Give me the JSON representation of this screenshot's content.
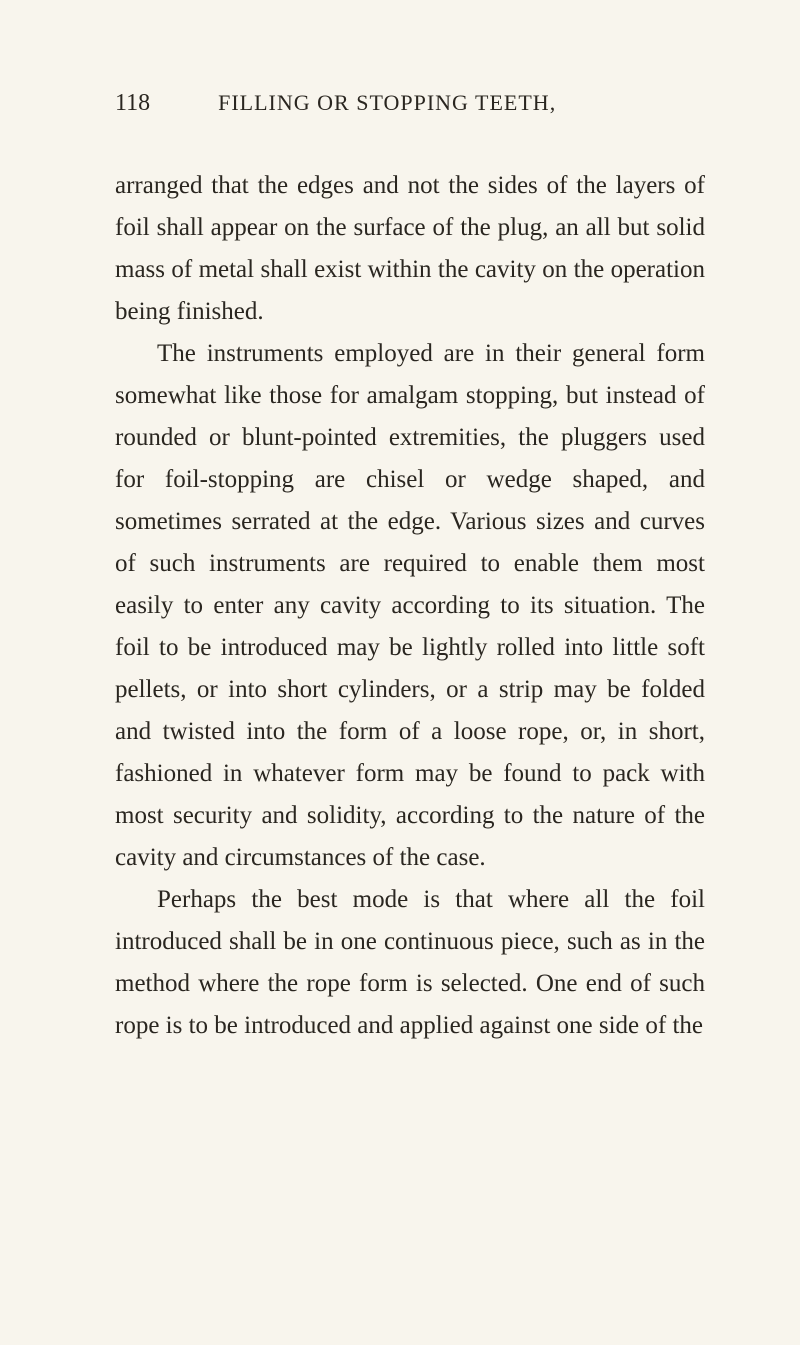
{
  "page": {
    "number": "118",
    "runningTitle": "FILLING OR STOPPING TEETH,",
    "paragraphs": [
      {
        "indent": false,
        "text": "arranged that the edges and not the sides of the layers of foil shall appear on the surface of the plug, an all but solid mass of metal shall exist within the cavity on the operation being finished."
      },
      {
        "indent": true,
        "text": "The instruments employed are in their general form somewhat like those for amalgam stopping, but instead of rounded or blunt-pointed extremities, the pluggers used for foil-stopping are chisel or wedge shaped, and sometimes serrated at the edge. Various sizes and curves of such instruments are required to enable them most easily to enter any cavity according to its situation. The foil to be introduced may be lightly rolled into little soft pellets, or into short cylinders, or a strip may be folded and twisted into the form of a loose rope, or, in short, fashioned in whatever form may be found to pack with most security and solidity, according to the nature of the cavity and circumstances of the case."
      },
      {
        "indent": true,
        "text": "Perhaps the best mode is that where all the foil introduced shall be in one continuous piece, such as in the method where the rope form is selected. One end of such rope is to be introduced and applied against one side of the"
      }
    ]
  },
  "styling": {
    "backgroundColor": "#f8f5ed",
    "textColor": "#2a2620",
    "bodyFontSize": 25,
    "headerFontSize": 24,
    "titleFontSize": 22,
    "lineHeight": 1.68
  }
}
